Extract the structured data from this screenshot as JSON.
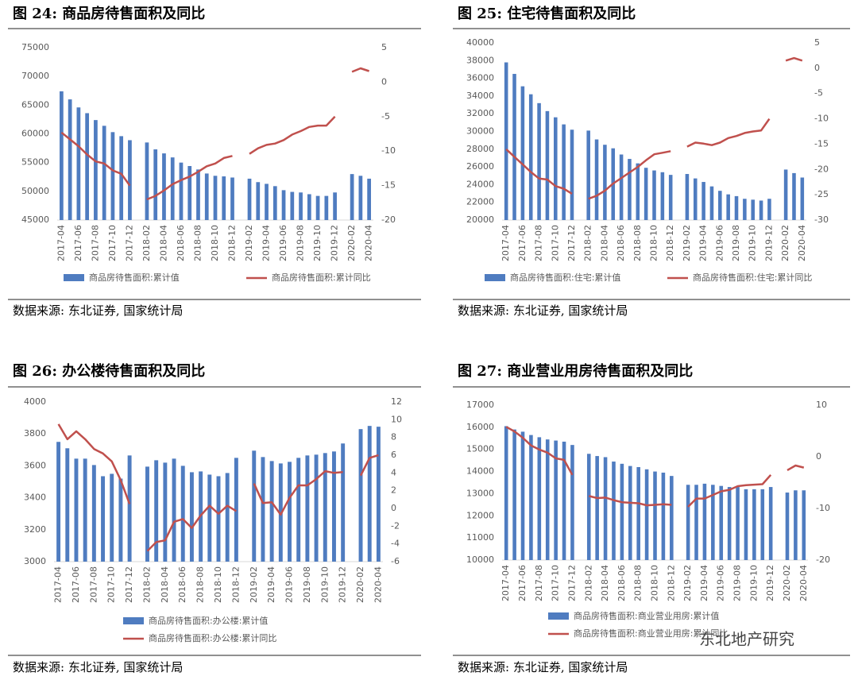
{
  "chart_data": [
    {
      "type": "bar-line",
      "title": "图 24:  商品房待售面积及同比",
      "source": "数据来源:  东北证券, 国家统计局",
      "categories": [
        "2017-04",
        null,
        "2017-06",
        null,
        "2017-08",
        null,
        "2017-10",
        null,
        "2017-12",
        null,
        "2018-02",
        null,
        "2018-04",
        null,
        "2018-06",
        null,
        "2018-08",
        null,
        "2018-10",
        null,
        "2018-12",
        null,
        "2019-02",
        null,
        "2019-04",
        null,
        "2019-06",
        null,
        "2019-08",
        null,
        "2019-10",
        null,
        "2019-12",
        null,
        "2020-02",
        null,
        "2020-04"
      ],
      "series": [
        {
          "name": "商品房待售面积:累计值",
          "type": "bar",
          "color": "#4f7cc0",
          "values": [
            67400,
            66000,
            64600,
            63600,
            62400,
            61400,
            60300,
            59600,
            58900,
            null,
            58500,
            57300,
            56600,
            55900,
            55000,
            54400,
            53800,
            53100,
            52700,
            52600,
            52400,
            null,
            52200,
            51600,
            51300,
            50900,
            50200,
            49900,
            49800,
            49500,
            49200,
            49200,
            49800,
            null,
            53000,
            52700,
            52200
          ]
        },
        {
          "name": "商品房待售面积:累计同比",
          "type": "line",
          "axis": "y2",
          "color": "#c0504d",
          "values": [
            -7.3,
            -8.3,
            -9.3,
            -10.5,
            -11.5,
            -11.8,
            -12.8,
            -13.3,
            -15,
            null,
            -17,
            -16.5,
            -15.7,
            -14.8,
            -14.2,
            -13.7,
            -13,
            -12.2,
            -11.8,
            -11,
            -10.7,
            null,
            -10.4,
            -9.6,
            -9.1,
            -8.9,
            -8.4,
            -7.6,
            -7.1,
            -6.5,
            -6.3,
            -6.3,
            -5,
            null,
            1.5,
            2,
            1.6
          ]
        }
      ],
      "ylim": [
        45000,
        75000
      ],
      "yticks": [
        45000,
        50000,
        55000,
        60000,
        65000,
        70000,
        75000
      ],
      "y2lim": [
        -20,
        5
      ],
      "y2ticks": [
        -20,
        -15,
        -10,
        -5,
        0,
        5
      ],
      "legend": "bottom"
    },
    {
      "type": "bar-line",
      "title": "图 25:  住宅待售面积及同比",
      "source": "数据来源:  东北证券, 国家统计局",
      "categories": [
        "2017-04",
        null,
        "2017-06",
        null,
        "2017-08",
        null,
        "2017-10",
        null,
        "2017-12",
        null,
        "2018-02",
        null,
        "2018-04",
        null,
        "2018-06",
        null,
        "2018-08",
        null,
        "2018-10",
        null,
        "2018-12",
        null,
        "2019-02",
        null,
        "2019-04",
        null,
        "2019-06",
        null,
        "2019-08",
        null,
        "2019-10",
        null,
        "2019-12",
        null,
        "2020-02",
        null,
        "2020-04"
      ],
      "series": [
        {
          "name": "商品房待售面积:住宅:累计值",
          "type": "bar",
          "color": "#4f7cc0",
          "values": [
            37800,
            36500,
            35100,
            34200,
            33200,
            32300,
            31600,
            30800,
            30200,
            null,
            30100,
            29100,
            28500,
            28100,
            27400,
            26900,
            26400,
            25900,
            25600,
            25400,
            25100,
            null,
            25200,
            24700,
            24300,
            23800,
            23300,
            22900,
            22700,
            22400,
            22300,
            22200,
            22400,
            null,
            25700,
            25300,
            24800
          ]
        },
        {
          "name": "商品房待售面积:住宅:累计同比",
          "type": "line",
          "axis": "y2",
          "color": "#c0504d",
          "values": [
            -16,
            -17.5,
            -19,
            -20.5,
            -21.8,
            -22,
            -23.3,
            -23.8,
            -24.8,
            null,
            -25.8,
            -25.2,
            -24.2,
            -22.8,
            -21.7,
            -20.6,
            -19.5,
            -18.2,
            -17,
            -16.7,
            -16.4,
            null,
            -15.5,
            -14.7,
            -14.9,
            -15.2,
            -14.7,
            -13.8,
            -13.4,
            -12.8,
            -12.5,
            -12.3,
            -10,
            null,
            1.5,
            2,
            1.5
          ]
        }
      ],
      "ylim": [
        20000,
        40000
      ],
      "yticks": [
        20000,
        22000,
        24000,
        26000,
        28000,
        30000,
        32000,
        34000,
        36000,
        38000,
        40000
      ],
      "y2lim": [
        -30,
        5
      ],
      "y2ticks": [
        -30,
        -25,
        -20,
        -15,
        -10,
        -5,
        0,
        5
      ],
      "legend": "bottom"
    },
    {
      "type": "bar-line",
      "title": "图 26:  办公楼待售面积及同比",
      "source": "数据来源:  东北证券, 国家统计局",
      "categories": [
        "2017-04",
        null,
        "2017-06",
        null,
        "2017-08",
        null,
        "2017-10",
        null,
        "2017-12",
        null,
        "2018-02",
        null,
        "2018-04",
        null,
        "2018-06",
        null,
        "2018-08",
        null,
        "2018-10",
        null,
        "2018-12",
        null,
        "2019-02",
        null,
        "2019-04",
        null,
        "2019-06",
        null,
        "2019-08",
        null,
        "2019-10",
        null,
        "2019-12",
        null,
        "2020-02",
        null,
        "2020-04"
      ],
      "series": [
        {
          "name": "商品房待售面积:办公楼:累计值",
          "type": "bar",
          "color": "#4f7cc0",
          "values": [
            3750,
            3710,
            3645,
            3645,
            3605,
            3535,
            3550,
            3520,
            3665,
            null,
            3595,
            3635,
            3620,
            3645,
            3600,
            3560,
            3565,
            3545,
            3535,
            3555,
            3650,
            null,
            3695,
            3655,
            3630,
            3615,
            3625,
            3650,
            3665,
            3670,
            3680,
            3690,
            3740,
            null,
            3830,
            3850,
            3845
          ]
        },
        {
          "name": "商品房待售面积:办公楼:累计同比",
          "type": "line",
          "axis": "y2",
          "color": "#c0504d",
          "values": [
            9.5,
            7.8,
            8.7,
            7.8,
            6.7,
            6.2,
            5.3,
            3.2,
            0.5,
            null,
            -4.8,
            -3.8,
            -3.6,
            -1.5,
            -1.2,
            -2.2,
            -0.8,
            0.3,
            -0.6,
            0.3,
            -0.3,
            null,
            2.8,
            0.6,
            0.7,
            -0.7,
            1.2,
            2.6,
            2.6,
            3.3,
            4.2,
            4,
            4.1,
            null,
            3.7,
            5.7,
            6
          ]
        }
      ],
      "ylim": [
        3000,
        4000
      ],
      "yticks": [
        3000,
        3200,
        3400,
        3600,
        3800,
        4000
      ],
      "y2lim": [
        -6,
        12
      ],
      "y2ticks": [
        -6,
        -4,
        -2,
        0,
        2,
        4,
        6,
        8,
        10,
        12
      ],
      "legend": "bottom"
    },
    {
      "type": "bar-line",
      "title": "图 27:  商业营业用房待售面积及同比",
      "source": "数据来源:  东北证券, 国家统计局",
      "watermark": "东北地产研究",
      "categories": [
        "2017-04",
        null,
        "2017-06",
        null,
        "2017-08",
        null,
        "2017-10",
        null,
        "2017-12",
        null,
        "2018-02",
        null,
        "2018-04",
        null,
        "2018-06",
        null,
        "2018-08",
        null,
        "2018-10",
        null,
        "2018-12",
        null,
        "2019-02",
        null,
        "2019-04",
        null,
        "2019-06",
        null,
        "2019-08",
        null,
        "2019-10",
        null,
        "2019-12",
        null,
        "2020-02",
        null,
        "2020-04"
      ],
      "series": [
        {
          "name": "商品房待售面积:商业营业用房:累计值",
          "type": "bar",
          "color": "#4f7cc0",
          "values": [
            16050,
            15900,
            15800,
            15650,
            15550,
            15450,
            15400,
            15350,
            15200,
            null,
            14800,
            14700,
            14650,
            14450,
            14350,
            14250,
            14200,
            14100,
            14000,
            13950,
            13800,
            null,
            13400,
            13400,
            13450,
            13400,
            13350,
            13300,
            13300,
            13200,
            13200,
            13200,
            13300,
            null,
            13050,
            13150,
            13150
          ]
        },
        {
          "name": "商品房待售面积:商业营业用房:累计同比",
          "type": "line",
          "axis": "y2",
          "color": "#c0504d",
          "values": [
            5.8,
            4.9,
            3.7,
            2.2,
            1.4,
            0.8,
            -0.3,
            -0.6,
            -3.5,
            null,
            -7.6,
            -8,
            -7.9,
            -8.4,
            -8.8,
            -8.9,
            -9,
            -9.4,
            -9.3,
            -9.2,
            -9.3,
            null,
            -9.7,
            -8.1,
            -8.1,
            -7.4,
            -6.7,
            -6.4,
            -5.7,
            -5.5,
            -5.4,
            -5.3,
            -3.5,
            null,
            -2.6,
            -1.7,
            -2.1
          ]
        }
      ],
      "ylim": [
        10000,
        17000
      ],
      "yticks": [
        10000,
        11000,
        12000,
        13000,
        14000,
        15000,
        16000,
        17000
      ],
      "y2lim": [
        -20,
        10
      ],
      "y2ticks": [
        -20,
        -10,
        0,
        10
      ],
      "legend": "bottom"
    }
  ]
}
